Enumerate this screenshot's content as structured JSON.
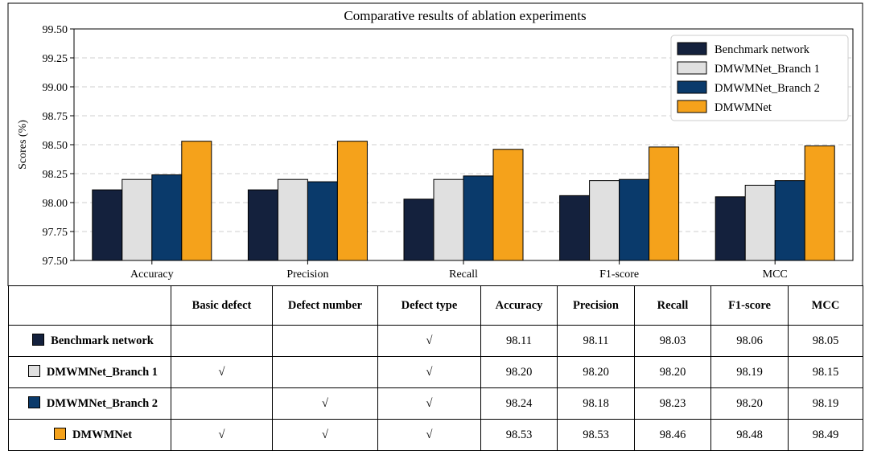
{
  "chart_data": {
    "type": "bar",
    "title": "Comparative results of ablation experiments",
    "ylabel": "Scores (%)",
    "xlabel": "",
    "ylim": [
      97.5,
      99.5
    ],
    "yticks": [
      97.5,
      97.75,
      98.0,
      98.25,
      98.5,
      98.75,
      99.0,
      99.25,
      99.5
    ],
    "ytick_labels": [
      "97.50",
      "97.75",
      "98.00",
      "98.25",
      "98.50",
      "98.75",
      "99.00",
      "99.25",
      "99.50"
    ],
    "grid": "horizontal dashed",
    "legend_position": "top-right",
    "categories": [
      "Accuracy",
      "Precision",
      "Recall",
      "F1-score",
      "MCC"
    ],
    "series": [
      {
        "name": "Benchmark network",
        "color": "#14213d",
        "values": [
          98.11,
          98.11,
          98.03,
          98.06,
          98.05
        ]
      },
      {
        "name": "DMWMNet_Branch 1",
        "color": "#e0e0e0",
        "values": [
          98.2,
          98.2,
          98.2,
          98.19,
          98.15
        ]
      },
      {
        "name": "DMWMNet_Branch 2",
        "color": "#0a3a6b",
        "values": [
          98.24,
          98.18,
          98.23,
          98.2,
          98.19
        ]
      },
      {
        "name": "DMWMNet",
        "color": "#f5a21b",
        "values": [
          98.53,
          98.53,
          98.46,
          98.48,
          98.49
        ]
      }
    ]
  },
  "table": {
    "headers": [
      "",
      "Basic defect",
      "Defect number",
      "Defect type",
      "Accuracy",
      "Precision",
      "Recall",
      "F1-score",
      "MCC"
    ],
    "check_symbol": "√",
    "rows": [
      {
        "model": "Benchmark network",
        "color": "#14213d",
        "basic": "",
        "number": "",
        "type": "√",
        "accuracy": "98.11",
        "precision": "98.11",
        "recall": "98.03",
        "f1": "98.06",
        "mcc": "98.05"
      },
      {
        "model": "DMWMNet_Branch 1",
        "color": "#e0e0e0",
        "basic": "√",
        "number": "",
        "type": "√",
        "accuracy": "98.20",
        "precision": "98.20",
        "recall": "98.20",
        "f1": "98.19",
        "mcc": "98.15"
      },
      {
        "model": "DMWMNet_Branch 2",
        "color": "#0a3a6b",
        "basic": "",
        "number": "√",
        "type": "√",
        "accuracy": "98.24",
        "precision": "98.18",
        "recall": "98.23",
        "f1": "98.20",
        "mcc": "98.19"
      },
      {
        "model": "DMWMNet",
        "color": "#f5a21b",
        "basic": "√",
        "number": "√",
        "type": "√",
        "accuracy": "98.53",
        "precision": "98.53",
        "recall": "98.46",
        "f1": "98.48",
        "mcc": "98.49"
      }
    ]
  }
}
